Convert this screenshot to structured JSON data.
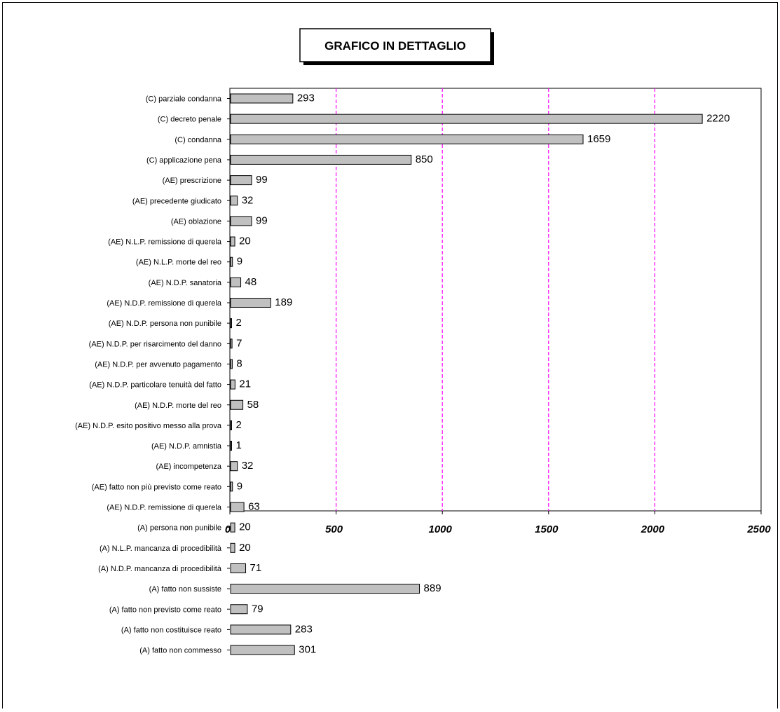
{
  "chart_data": {
    "type": "bar",
    "orientation": "horizontal",
    "title": "GRAFICO IN DETTAGLIO",
    "xlabel": "",
    "ylabel": "",
    "xlim": [
      0,
      2500
    ],
    "ticks": [
      0,
      500,
      1000,
      1500,
      2000,
      2500
    ],
    "grid": "vertical dashed magenta",
    "legend": "none",
    "colors": {
      "bar_fill": "#c0c0c0",
      "bar_stroke": "#000000",
      "grid": "#ff00ff"
    },
    "categories": [
      "(C) parziale condanna",
      "(C) decreto penale",
      "(C) condanna",
      "(C) applicazione pena",
      "(AE) prescrizione",
      "(AE) precedente giudicato",
      "(AE) oblazione",
      "(AE) N.L.P. remissione di querela",
      "(AE) N.L.P. morte del reo",
      "(AE) N.D.P. sanatoria",
      "(AE) N.D.P. remissione di querela",
      "(AE) N.D.P. persona non punibile",
      "(AE) N.D.P. per risarcimento del danno",
      "(AE) N.D.P. per avvenuto pagamento",
      "(AE) N.D.P. particolare tenuità del fatto",
      "(AE) N.D.P. morte del reo",
      "(AE) N.D.P. esito positivo messo alla prova",
      "(AE) N.D.P. amnistia",
      "(AE) incompetenza",
      "(AE) fatto non più previsto come reato",
      "(AE) N.D.P. remissione di querela",
      "(A) persona non punibile",
      "(A) N.L.P. mancanza di procedibilità",
      "(A) N.D.P. mancanza di procedibilità",
      "(A) fatto non sussiste",
      "(A) fatto non previsto come reato",
      "(A) fatto non costituisce reato",
      "(A) fatto non commesso"
    ],
    "values": [
      293,
      2220,
      1659,
      850,
      99,
      32,
      99,
      20,
      9,
      48,
      189,
      2,
      7,
      8,
      21,
      58,
      2,
      1,
      32,
      9,
      63,
      20,
      20,
      71,
      889,
      79,
      283,
      301
    ]
  }
}
